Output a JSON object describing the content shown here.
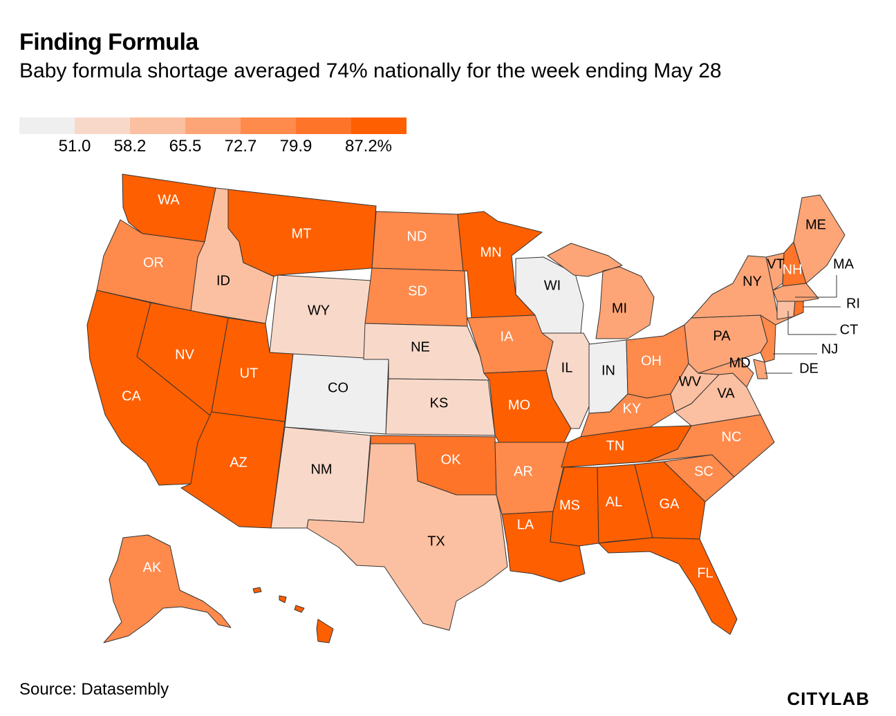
{
  "title": "Finding Formula",
  "subtitle": "Baby formula shortage averaged 74% nationally for the week ending May 28",
  "legend": {
    "colors": [
      "#efefef",
      "#f8d9c9",
      "#fbc0a1",
      "#fda577",
      "#fe8a4c",
      "#fe7429",
      "#fe5f00"
    ],
    "ticks": [
      "51.0",
      "58.2",
      "65.5",
      "72.7",
      "79.9",
      "87.2%"
    ]
  },
  "states": {
    "WA": {
      "label": "WA",
      "color": "#fe5f00",
      "label_color": "#ffffff"
    },
    "OR": {
      "label": "OR",
      "color": "#fe8a4c",
      "label_color": "#ffffff"
    },
    "CA": {
      "label": "CA",
      "color": "#fe5f00",
      "label_color": "#ffffff"
    },
    "ID": {
      "label": "ID",
      "color": "#fbc0a1",
      "label_color": "#000000"
    },
    "NV": {
      "label": "NV",
      "color": "#fe5f00",
      "label_color": "#ffffff"
    },
    "MT": {
      "label": "MT",
      "color": "#fe5f00",
      "label_color": "#ffffff"
    },
    "WY": {
      "label": "WY",
      "color": "#f8d9c9",
      "label_color": "#000000"
    },
    "UT": {
      "label": "UT",
      "color": "#fe5f00",
      "label_color": "#ffffff"
    },
    "AZ": {
      "label": "AZ",
      "color": "#fe5f00",
      "label_color": "#ffffff"
    },
    "CO": {
      "label": "CO",
      "color": "#efefef",
      "label_color": "#000000"
    },
    "NM": {
      "label": "NM",
      "color": "#f8d9c9",
      "label_color": "#000000"
    },
    "ND": {
      "label": "ND",
      "color": "#fe8a4c",
      "label_color": "#ffffff"
    },
    "SD": {
      "label": "SD",
      "color": "#fe8a4c",
      "label_color": "#ffffff"
    },
    "NE": {
      "label": "NE",
      "color": "#f8d9c9",
      "label_color": "#000000"
    },
    "KS": {
      "label": "KS",
      "color": "#f8d9c9",
      "label_color": "#000000"
    },
    "OK": {
      "label": "OK",
      "color": "#fe7429",
      "label_color": "#ffffff"
    },
    "TX": {
      "label": "TX",
      "color": "#fbc0a1",
      "label_color": "#000000"
    },
    "MN": {
      "label": "MN",
      "color": "#fe5f00",
      "label_color": "#ffffff"
    },
    "IA": {
      "label": "IA",
      "color": "#fe8a4c",
      "label_color": "#ffffff"
    },
    "MO": {
      "label": "MO",
      "color": "#fe5f00",
      "label_color": "#ffffff"
    },
    "AR": {
      "label": "AR",
      "color": "#fe8a4c",
      "label_color": "#ffffff"
    },
    "LA": {
      "label": "LA",
      "color": "#fe5f00",
      "label_color": "#ffffff"
    },
    "WI": {
      "label": "WI",
      "color": "#efefef",
      "label_color": "#000000"
    },
    "IL": {
      "label": "IL",
      "color": "#f8d9c9",
      "label_color": "#000000"
    },
    "MI": {
      "label": "MI",
      "color": "#fda577",
      "label_color": "#000000"
    },
    "IN": {
      "label": "IN",
      "color": "#efefef",
      "label_color": "#000000"
    },
    "OH": {
      "label": "OH",
      "color": "#fe8a4c",
      "label_color": "#ffffff"
    },
    "KY": {
      "label": "KY",
      "color": "#fe8a4c",
      "label_color": "#ffffff"
    },
    "TN": {
      "label": "TN",
      "color": "#fe5f00",
      "label_color": "#ffffff"
    },
    "MS": {
      "label": "MS",
      "color": "#fe5f00",
      "label_color": "#ffffff"
    },
    "AL": {
      "label": "AL",
      "color": "#fe5f00",
      "label_color": "#ffffff"
    },
    "GA": {
      "label": "GA",
      "color": "#fe5f00",
      "label_color": "#ffffff"
    },
    "FL": {
      "label": "FL",
      "color": "#fe5f00",
      "label_color": "#ffffff"
    },
    "SC": {
      "label": "SC",
      "color": "#fe8a4c",
      "label_color": "#ffffff"
    },
    "NC": {
      "label": "NC",
      "color": "#fe8a4c",
      "label_color": "#ffffff"
    },
    "VA": {
      "label": "VA",
      "color": "#fbc0a1",
      "label_color": "#000000"
    },
    "WV": {
      "label": "WV",
      "color": "#fbc0a1",
      "label_color": "#000000"
    },
    "PA": {
      "label": "PA",
      "color": "#fda577",
      "label_color": "#000000"
    },
    "NY": {
      "label": "NY",
      "color": "#fda577",
      "label_color": "#000000"
    },
    "ME": {
      "label": "ME",
      "color": "#fda577",
      "label_color": "#000000"
    },
    "VT": {
      "label": "VT",
      "color": "#fda577",
      "label_color": "#000000"
    },
    "NH": {
      "label": "NH",
      "color": "#fe7429",
      "label_color": "#ffffff"
    },
    "MA": {
      "label": "MA",
      "color": "#fda577",
      "label_color": "#000000"
    },
    "RI": {
      "label": "RI",
      "color": "#fe7429",
      "label_color": "#000000"
    },
    "CT": {
      "label": "CT",
      "color": "#fbc0a1",
      "label_color": "#000000"
    },
    "NJ": {
      "label": "NJ",
      "color": "#fe8a4c",
      "label_color": "#000000"
    },
    "DE": {
      "label": "DE",
      "color": "#fda577",
      "label_color": "#000000"
    },
    "MD": {
      "label": "MD",
      "color": "#fda577",
      "label_color": "#000000"
    },
    "AK": {
      "label": "AK",
      "color": "#fe8a4c",
      "label_color": "#ffffff"
    },
    "HI": {
      "label": "",
      "color": "#fe5f00",
      "label_color": "#ffffff"
    }
  },
  "source": "Source: Datasembly",
  "logo": "CITYLAB"
}
